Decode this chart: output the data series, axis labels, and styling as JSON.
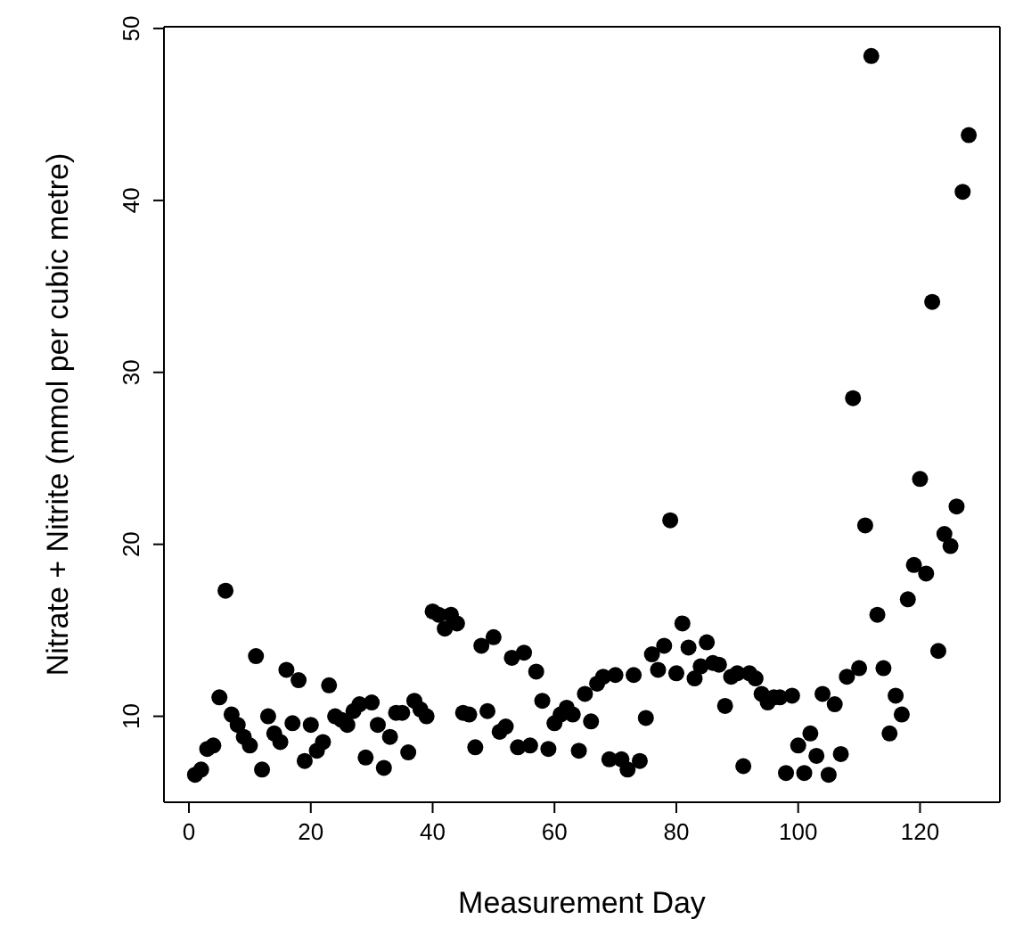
{
  "chart_data": {
    "type": "scatter",
    "xlabel": "Measurement Day",
    "ylabel": "Nitrate + Nitrite (mmol per cubic metre)",
    "xlim": [
      -4.1,
      133.1
    ],
    "ylim": [
      5.0,
      50.1
    ],
    "xticks": [
      0,
      20,
      40,
      60,
      80,
      100,
      120
    ],
    "yticks": [
      10,
      20,
      30,
      40,
      50
    ],
    "marker": "circle",
    "series": [
      {
        "color": "#000000",
        "x": [
          1,
          2,
          3,
          4,
          5,
          6,
          7,
          8,
          9,
          10,
          11,
          12,
          13,
          14,
          15,
          16,
          17,
          18,
          19,
          20,
          21,
          22,
          23,
          24,
          25,
          26,
          27,
          28,
          29,
          30,
          31,
          32,
          33,
          34,
          35,
          36,
          37,
          38,
          39,
          40,
          41,
          42,
          43,
          44,
          45,
          46,
          47,
          48,
          49,
          50,
          51,
          52,
          53,
          54,
          55,
          56,
          57,
          58,
          59,
          60,
          61,
          62,
          63,
          64,
          65,
          66,
          67,
          68,
          69,
          70,
          71,
          72,
          73,
          74,
          75,
          76,
          77,
          78,
          79,
          80,
          81,
          82,
          83,
          84,
          85,
          86,
          87,
          88,
          89,
          90,
          91,
          92,
          93,
          94,
          95,
          96,
          97,
          98,
          99,
          100,
          101,
          102,
          103,
          104,
          105,
          106,
          107,
          108,
          109,
          110,
          111,
          112,
          113,
          114,
          115,
          116,
          117,
          118,
          119,
          120,
          121,
          122,
          123,
          124,
          125,
          126,
          127,
          128
        ],
        "values": [
          6.6,
          6.9,
          8.1,
          8.3,
          11.1,
          17.3,
          10.1,
          9.5,
          8.8,
          8.3,
          13.5,
          6.9,
          10.0,
          9.0,
          8.5,
          12.7,
          9.6,
          12.1,
          7.4,
          9.5,
          8.0,
          8.5,
          11.8,
          10.0,
          9.8,
          9.5,
          10.3,
          10.7,
          7.6,
          10.8,
          9.5,
          7.0,
          8.8,
          10.2,
          10.2,
          7.9,
          10.9,
          10.4,
          10.0,
          16.1,
          15.9,
          15.1,
          15.9,
          15.4,
          10.2,
          10.1,
          8.2,
          14.1,
          10.3,
          14.6,
          9.1,
          9.4,
          13.4,
          8.2,
          13.7,
          8.3,
          12.6,
          10.9,
          8.1,
          9.6,
          10.1,
          10.5,
          10.1,
          8.0,
          11.3,
          9.7,
          11.9,
          12.3,
          7.5,
          12.4,
          7.5,
          6.9,
          12.4,
          7.4,
          9.9,
          13.6,
          12.7,
          14.1,
          21.4,
          12.5,
          15.4,
          14.0,
          12.2,
          12.9,
          14.3,
          13.1,
          13.0,
          10.6,
          12.3,
          12.5,
          7.1,
          12.5,
          12.2,
          11.3,
          10.8,
          11.1,
          11.1,
          6.7,
          11.2,
          8.3,
          6.7,
          9.0,
          7.7,
          11.3,
          6.6,
          10.7,
          7.8,
          12.3,
          28.5,
          12.8,
          21.1,
          48.4,
          15.9,
          12.8,
          9.0,
          11.2,
          10.1,
          16.8,
          18.8,
          23.8,
          18.3,
          34.1,
          13.8,
          20.6,
          19.9,
          22.2,
          40.5,
          43.8
        ]
      }
    ]
  }
}
